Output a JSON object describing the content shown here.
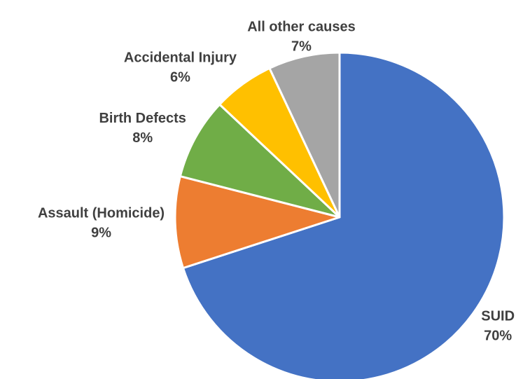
{
  "chart_data": {
    "type": "pie",
    "categories": [
      "SUID",
      "Assault (Homicide)",
      "Birth Defects",
      "Accidental Injury",
      "All other causes"
    ],
    "values": [
      70,
      9,
      8,
      6,
      7
    ],
    "value_labels": [
      "70%",
      "9%",
      "8%",
      "6%",
      "7%"
    ],
    "colors": [
      "#4472c4",
      "#ed7d31",
      "#70ad47",
      "#ffc000",
      "#a5a5a5"
    ]
  }
}
